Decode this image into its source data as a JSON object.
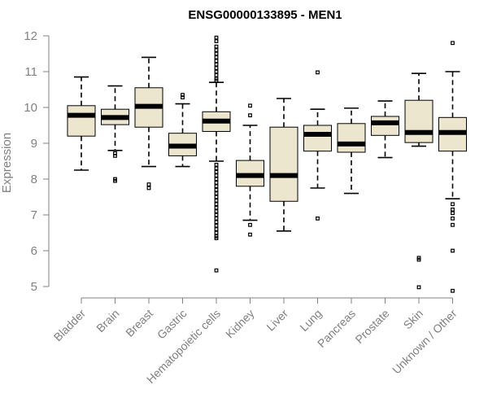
{
  "chart_data": {
    "type": "boxplot",
    "title": "ENSG00000133895 - MEN1",
    "xlabel": "",
    "ylabel": "Expression",
    "ylim": [
      4.8,
      12.2
    ],
    "yticks": [
      5,
      6,
      7,
      8,
      9,
      10,
      11,
      12
    ],
    "box_fill": "#ede6cf",
    "categories": [
      "Bladder",
      "Brain",
      "Breast",
      "Gastric",
      "Hematopoietic cells",
      "Kidney",
      "Liver",
      "Lung",
      "Pancreas",
      "Prostate",
      "Skin",
      "Unknown / Other"
    ],
    "boxes": [
      {
        "category": "Bladder",
        "whisker_low": 8.25,
        "q1": 9.2,
        "median": 9.78,
        "q3": 10.05,
        "whisker_high": 10.85,
        "outliers": []
      },
      {
        "category": "Brain",
        "whisker_low": 8.8,
        "q1": 9.52,
        "median": 9.72,
        "q3": 9.95,
        "whisker_high": 10.6,
        "outliers": [
          8.65,
          8.72,
          8.0,
          7.95
        ]
      },
      {
        "category": "Breast",
        "whisker_low": 8.35,
        "q1": 9.45,
        "median": 10.03,
        "q3": 10.55,
        "whisker_high": 11.4,
        "outliers": [
          7.85,
          7.75
        ]
      },
      {
        "category": "Gastric",
        "whisker_low": 8.35,
        "q1": 8.65,
        "median": 8.92,
        "q3": 9.28,
        "whisker_high": 10.1,
        "outliers": [
          10.35,
          10.28
        ]
      },
      {
        "category": "Hematopoietic cells",
        "whisker_low": 8.5,
        "q1": 9.33,
        "median": 9.62,
        "q3": 9.88,
        "whisker_high": 10.7,
        "outliers": [
          11.95,
          11.85,
          11.7,
          11.6,
          11.5,
          11.4,
          11.3,
          11.2,
          11.1,
          11.0,
          10.9,
          10.8,
          10.75,
          8.4,
          8.3,
          8.2,
          8.1,
          8.0,
          7.9,
          7.8,
          7.7,
          7.6,
          7.5,
          7.4,
          7.3,
          7.2,
          7.1,
          7.0,
          6.9,
          6.8,
          6.7,
          6.6,
          6.5,
          6.4,
          6.35,
          5.45
        ]
      },
      {
        "category": "Kidney",
        "whisker_low": 6.85,
        "q1": 7.8,
        "median": 8.1,
        "q3": 8.52,
        "whisker_high": 9.5,
        "outliers": [
          10.05,
          9.78,
          6.72,
          6.45
        ]
      },
      {
        "category": "Liver",
        "whisker_low": 6.55,
        "q1": 7.38,
        "median": 8.1,
        "q3": 9.45,
        "whisker_high": 10.25,
        "outliers": []
      },
      {
        "category": "Lung",
        "whisker_low": 7.75,
        "q1": 8.78,
        "median": 9.25,
        "q3": 9.5,
        "whisker_high": 9.95,
        "outliers": [
          10.98,
          6.9
        ]
      },
      {
        "category": "Pancreas",
        "whisker_low": 7.6,
        "q1": 8.75,
        "median": 8.98,
        "q3": 9.55,
        "whisker_high": 9.98,
        "outliers": []
      },
      {
        "category": "Prostate",
        "whisker_low": 8.6,
        "q1": 9.22,
        "median": 9.57,
        "q3": 9.75,
        "whisker_high": 10.18,
        "outliers": []
      },
      {
        "category": "Skin",
        "whisker_low": 8.92,
        "q1": 9.02,
        "median": 9.3,
        "q3": 10.2,
        "whisker_high": 10.95,
        "outliers": [
          5.8,
          5.75,
          4.98
        ]
      },
      {
        "category": "Unknown / Other",
        "whisker_low": 7.45,
        "q1": 8.78,
        "median": 9.3,
        "q3": 9.72,
        "whisker_high": 11.0,
        "outliers": [
          11.8,
          7.3,
          7.15,
          7.05,
          6.9,
          6.72,
          6.0,
          4.88
        ]
      }
    ]
  }
}
